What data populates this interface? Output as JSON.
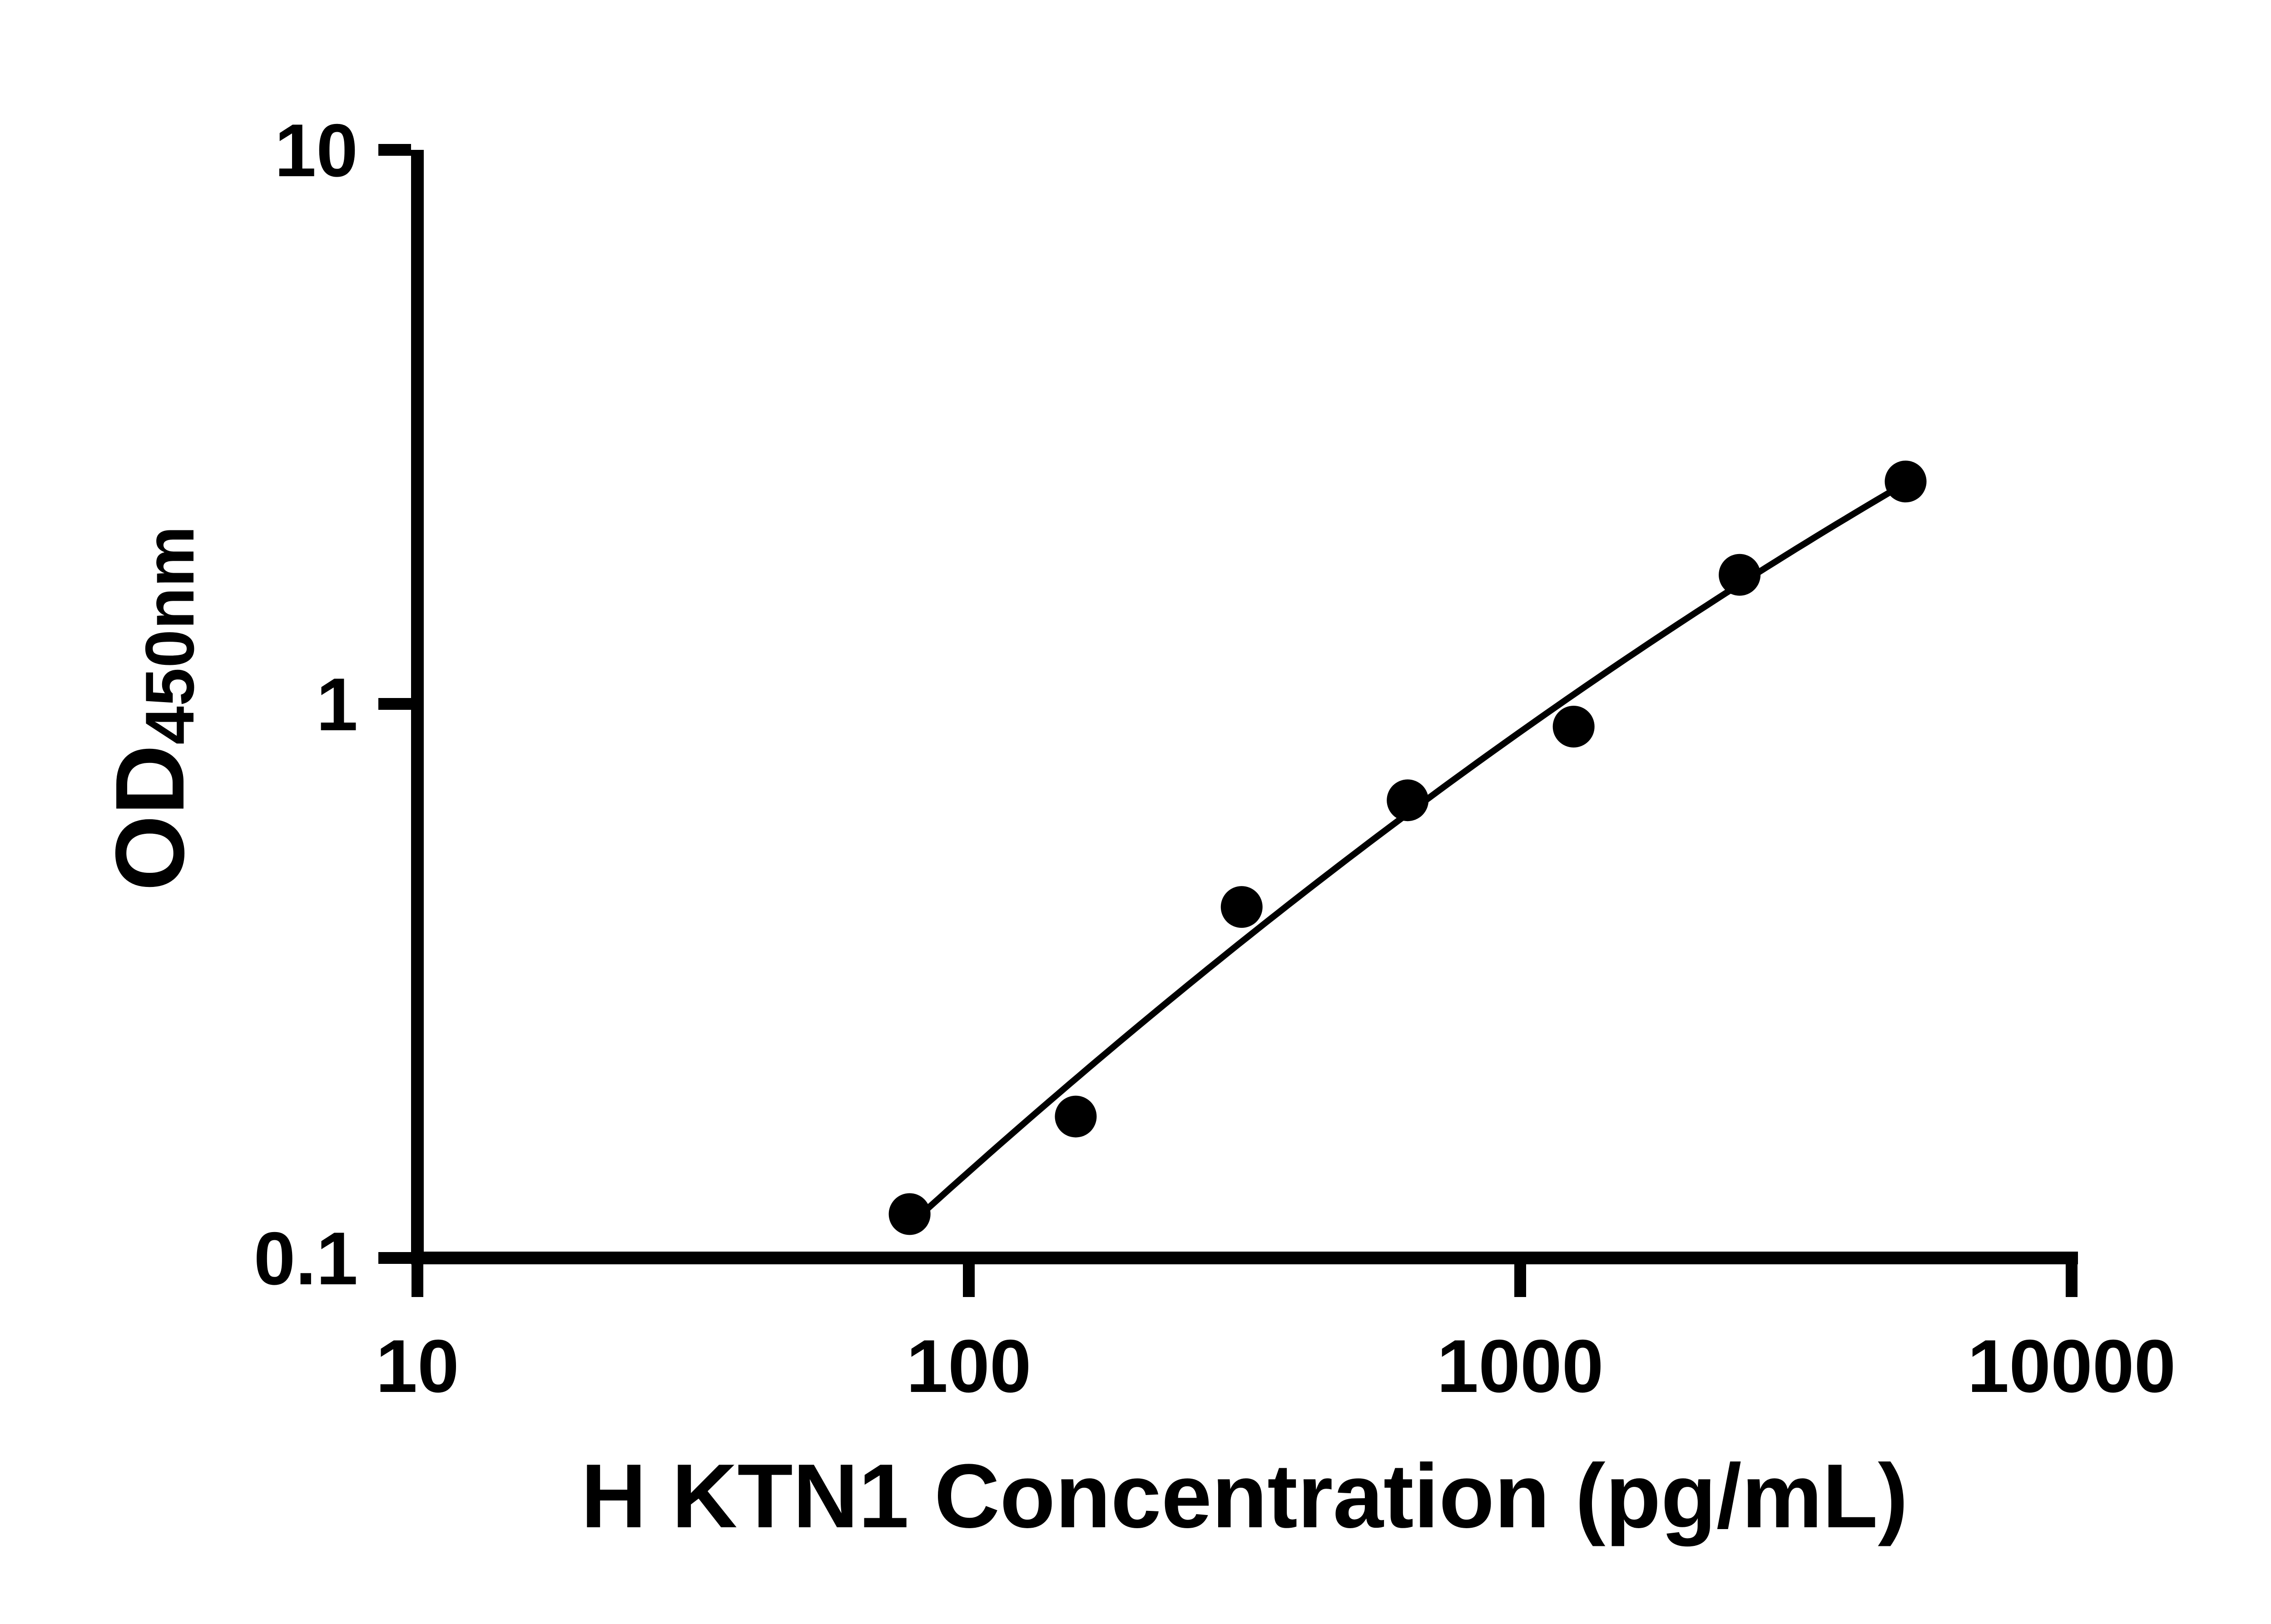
{
  "chart_data": {
    "type": "scatter",
    "title": "",
    "xlabel": "H KTN1 Concentration (pg/mL)",
    "ylabel": "OD450nm",
    "ylabel_main": "OD",
    "ylabel_sub": "450nm",
    "x_scale": "log",
    "y_scale": "log",
    "xlim": [
      10,
      10000
    ],
    "ylim": [
      0.1,
      10
    ],
    "x_ticks": [
      10,
      100,
      1000,
      10000
    ],
    "x_tick_labels": [
      "10",
      "100",
      "1000",
      "10000"
    ],
    "y_ticks": [
      0.1,
      1,
      10
    ],
    "y_tick_labels": [
      "0.1",
      "1",
      "10"
    ],
    "points": [
      {
        "x": 78.1,
        "y": 0.12
      },
      {
        "x": 156.3,
        "y": 0.18
      },
      {
        "x": 312.5,
        "y": 0.43
      },
      {
        "x": 625,
        "y": 0.67
      },
      {
        "x": 1250,
        "y": 0.91
      },
      {
        "x": 2500,
        "y": 1.71
      },
      {
        "x": 5000,
        "y": 2.52
      }
    ],
    "fit_line": true,
    "grid": false,
    "legend": null,
    "marker_color": "#000000",
    "line_color": "#000000",
    "axis_color": "#000000"
  }
}
